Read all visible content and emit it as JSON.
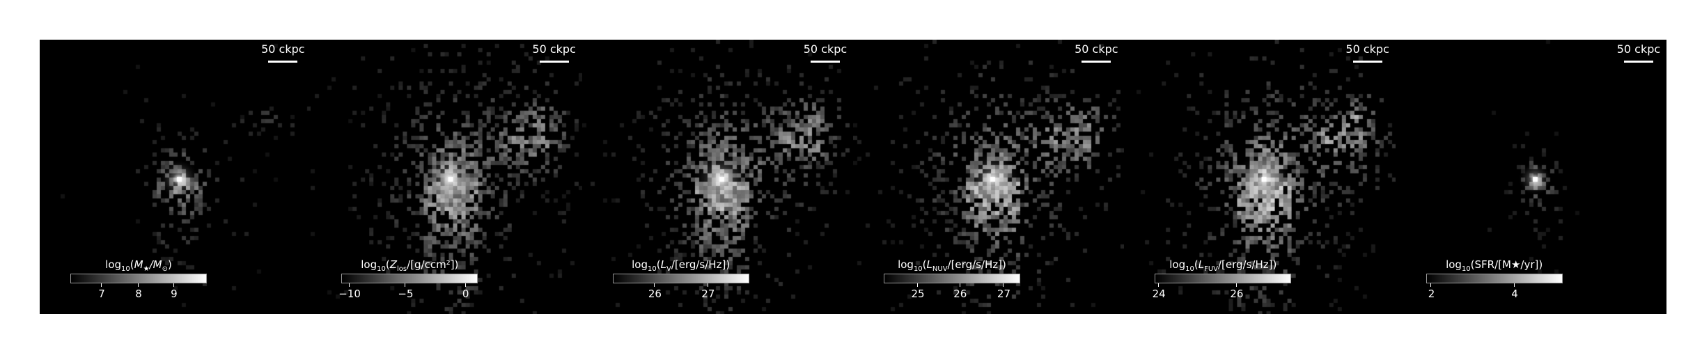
{
  "panels": [
    {
      "scale_label": "50 ckpc",
      "cbar": {
        "prefix": "log",
        "base": "10",
        "open": "(",
        "var": "M",
        "var_sub": "★",
        "rest": "/M",
        "rest_sub": "⊙",
        "close": ")"
      },
      "ticks": [
        {
          "label": "7",
          "pos": 0.23
        },
        {
          "label": "8",
          "pos": 0.5
        },
        {
          "label": "9",
          "pos": 0.76
        }
      ],
      "map": {
        "style": "compact",
        "seed": 11,
        "intensity": 0.55,
        "spread": 0.4,
        "core": 1.0,
        "clumps": 1
      }
    },
    {
      "scale_label": "50 ckpc",
      "cbar": {
        "prefix": "log",
        "base": "10",
        "open": "(",
        "var": "Z",
        "var_sub": "los",
        "rest": "/[g/ccm²]",
        "rest_sub": "",
        "close": ")"
      },
      "ticks": [
        {
          "label": "−10",
          "pos": 0.06
        },
        {
          "label": "−5",
          "pos": 0.47
        },
        {
          "label": "0",
          "pos": 0.91
        }
      ],
      "map": {
        "style": "diffuse",
        "seed": 23,
        "intensity": 0.45,
        "spread": 1.0,
        "core": 1.0,
        "clumps": 3
      }
    },
    {
      "scale_label": "50 ckpc",
      "cbar": {
        "prefix": "log",
        "base": "10",
        "open": "(",
        "var": "L",
        "var_sub": "V",
        "rest": "/[erg/s/Hz]",
        "rest_sub": "",
        "close": ")"
      },
      "ticks": [
        {
          "label": "26",
          "pos": 0.31
        },
        {
          "label": "27",
          "pos": 0.7
        }
      ],
      "map": {
        "style": "diffuse",
        "seed": 37,
        "intensity": 0.6,
        "spread": 0.95,
        "core": 0.95,
        "clumps": 3
      }
    },
    {
      "scale_label": "50 ckpc",
      "cbar": {
        "prefix": "log",
        "base": "10",
        "open": "(",
        "var": "L",
        "var_sub": "NUV",
        "rest": "/[erg/s/Hz]",
        "rest_sub": "",
        "close": ")"
      },
      "ticks": [
        {
          "label": "25",
          "pos": 0.25
        },
        {
          "label": "26",
          "pos": 0.56
        },
        {
          "label": "27",
          "pos": 0.88
        }
      ],
      "map": {
        "style": "diffuse",
        "seed": 41,
        "intensity": 0.65,
        "spread": 0.95,
        "core": 0.85,
        "clumps": 3
      }
    },
    {
      "scale_label": "50 ckpc",
      "cbar": {
        "prefix": "log",
        "base": "10",
        "open": "(",
        "var": "L",
        "var_sub": "FUV",
        "rest": "/[erg/s/Hz]",
        "rest_sub": "",
        "close": ")"
      },
      "ticks": [
        {
          "label": "24",
          "pos": 0.03
        },
        {
          "label": "26",
          "pos": 0.6
        }
      ],
      "map": {
        "style": "diffuse",
        "seed": 53,
        "intensity": 0.7,
        "spread": 0.95,
        "core": 0.8,
        "clumps": 3
      }
    },
    {
      "scale_label": "50 ckpc",
      "cbar": {
        "prefix": "log",
        "base": "10",
        "open": "(",
        "var": "SFR",
        "var_sub": "",
        "rest": "/[M★/yr]",
        "rest_sub": "",
        "close": ")",
        "upright": true
      },
      "ticks": [
        {
          "label": "2",
          "pos": 0.04
        },
        {
          "label": "4",
          "pos": 0.65
        }
      ],
      "map": {
        "style": "tiny",
        "seed": 67,
        "intensity": 0.35,
        "spread": 0.2,
        "core": 0.9,
        "clumps": 0
      }
    }
  ],
  "colors": {
    "background": "#000000",
    "figure": "#ffffff",
    "text": "#ffffff"
  }
}
